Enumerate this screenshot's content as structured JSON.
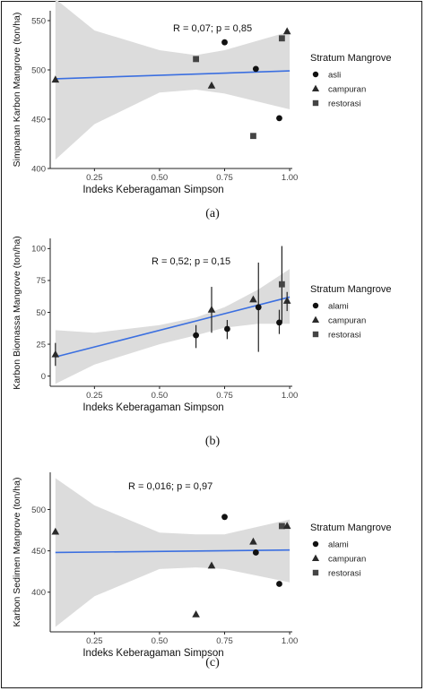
{
  "chart_data": [
    {
      "type": "scatter",
      "caption": "(a)",
      "annotation": "R = 0,07; p = 0,85",
      "xlabel": "Indeks Keberagaman Simpson",
      "ylabel": "Simpanan Karbon Mangrove (ton/ha)",
      "xlim": [
        0.08,
        1.01
      ],
      "ylim": [
        400,
        560
      ],
      "x_ticks": [
        0.25,
        0.5,
        0.75,
        1.0
      ],
      "x_tick_labels": [
        "0.25",
        "0.50",
        "0.75",
        "1.00"
      ],
      "y_ticks": [
        400,
        450,
        500,
        550
      ],
      "y_tick_labels": [
        "400",
        "450",
        "500",
        "550"
      ],
      "legend": {
        "title": "Stratum Mangrove",
        "position": "right",
        "entries": [
          {
            "label": "asli",
            "shape": "circle"
          },
          {
            "label": "campuran",
            "shape": "triangle"
          },
          {
            "label": "restorasi",
            "shape": "square"
          }
        ]
      },
      "points": [
        {
          "x": 0.75,
          "y": 528,
          "shape": "circle"
        },
        {
          "x": 0.87,
          "y": 501,
          "shape": "circle"
        },
        {
          "x": 0.96,
          "y": 451,
          "shape": "circle"
        },
        {
          "x": 0.1,
          "y": 490,
          "shape": "triangle"
        },
        {
          "x": 0.7,
          "y": 484,
          "shape": "triangle"
        },
        {
          "x": 0.99,
          "y": 539,
          "shape": "triangle"
        },
        {
          "x": 0.64,
          "y": 511,
          "shape": "square"
        },
        {
          "x": 0.86,
          "y": 433,
          "shape": "square"
        },
        {
          "x": 0.97,
          "y": 532,
          "shape": "square"
        }
      ],
      "trend": {
        "x": [
          0.1,
          1.0
        ],
        "y": [
          491,
          499
        ]
      },
      "band": {
        "x": [
          0.1,
          0.25,
          0.5,
          0.64,
          0.75,
          1.0
        ],
        "lower": [
          409,
          445,
          477,
          480,
          476,
          460
        ],
        "upper": [
          572,
          540,
          520,
          515,
          520,
          539
        ]
      }
    },
    {
      "type": "scatter",
      "caption": "(b)",
      "annotation": "R = 0,52; p = 0,15",
      "xlabel": "Indeks Keberagaman Simpson",
      "ylabel": "Karbon Biomassa Mangrove (ton/ha)",
      "xlim": [
        0.08,
        1.01
      ],
      "ylim": [
        -8,
        108
      ],
      "x_ticks": [
        0.25,
        0.5,
        0.75,
        1.0
      ],
      "x_tick_labels": [
        "0.25",
        "0.50",
        "0.75",
        "1.00"
      ],
      "y_ticks": [
        0,
        25,
        50,
        75,
        100
      ],
      "y_tick_labels": [
        "0",
        "25",
        "50",
        "75",
        "100"
      ],
      "legend": {
        "title": "Stratum Mangrove",
        "position": "right",
        "entries": [
          {
            "label": "alami",
            "shape": "circle"
          },
          {
            "label": "campuran",
            "shape": "triangle"
          },
          {
            "label": "restorasi",
            "shape": "square"
          }
        ]
      },
      "points": [
        {
          "x": 0.1,
          "y": 17,
          "shape": "triangle",
          "err": [
            8,
            26
          ]
        },
        {
          "x": 0.64,
          "y": 32,
          "shape": "circle",
          "err": [
            22,
            40
          ]
        },
        {
          "x": 0.7,
          "y": 52,
          "shape": "triangle",
          "err": [
            34,
            70
          ]
        },
        {
          "x": 0.76,
          "y": 37,
          "shape": "circle",
          "err": [
            29,
            44
          ]
        },
        {
          "x": 0.86,
          "y": 60,
          "shape": "triangle"
        },
        {
          "x": 0.88,
          "y": 54,
          "shape": "circle",
          "err": [
            19,
            89
          ]
        },
        {
          "x": 0.96,
          "y": 42,
          "shape": "circle",
          "err": [
            33,
            52
          ]
        },
        {
          "x": 0.97,
          "y": 72,
          "shape": "square",
          "err": [
            42,
            102
          ]
        },
        {
          "x": 0.99,
          "y": 59,
          "shape": "triangle",
          "err": [
            51,
            66
          ]
        }
      ],
      "trend": {
        "x": [
          0.1,
          1.0
        ],
        "y": [
          15,
          62
        ]
      },
      "band": {
        "x": [
          0.1,
          0.25,
          0.5,
          0.64,
          0.75,
          0.88,
          1.0
        ],
        "lower": [
          -6,
          9,
          25,
          32,
          38,
          41,
          41
        ],
        "upper": [
          36,
          34,
          40,
          46,
          54,
          68,
          84
        ]
      }
    },
    {
      "type": "scatter",
      "caption": "(c)",
      "annotation": "R = 0,016; p = 0,97",
      "xlabel": "Indeks Keberagaman Simpson",
      "ylabel": "Karbon Sedimen Mangrove (ton/ha)",
      "xlim": [
        0.08,
        1.01
      ],
      "ylim": [
        352,
        545
      ],
      "x_ticks": [
        0.25,
        0.5,
        0.75,
        1.0
      ],
      "x_tick_labels": [
        "0.25",
        "0.50",
        "0.75",
        "1.00"
      ],
      "y_ticks": [
        400,
        450,
        500
      ],
      "y_tick_labels": [
        "400",
        "450",
        "500"
      ],
      "legend": {
        "title": "Stratum Mangrove",
        "position": "right",
        "entries": [
          {
            "label": "alami",
            "shape": "circle"
          },
          {
            "label": "campuran",
            "shape": "triangle"
          },
          {
            "label": "restorasi",
            "shape": "square"
          }
        ]
      },
      "points": [
        {
          "x": 0.1,
          "y": 473,
          "shape": "triangle"
        },
        {
          "x": 0.64,
          "y": 373,
          "shape": "triangle"
        },
        {
          "x": 0.7,
          "y": 432,
          "shape": "triangle"
        },
        {
          "x": 0.75,
          "y": 491,
          "shape": "circle"
        },
        {
          "x": 0.86,
          "y": 461,
          "shape": "triangle"
        },
        {
          "x": 0.87,
          "y": 448,
          "shape": "circle"
        },
        {
          "x": 0.96,
          "y": 410,
          "shape": "circle"
        },
        {
          "x": 0.97,
          "y": 480,
          "shape": "square"
        },
        {
          "x": 0.99,
          "y": 480,
          "shape": "triangle"
        }
      ],
      "trend": {
        "x": [
          0.1,
          1.0
        ],
        "y": [
          448,
          451
        ]
      },
      "band": {
        "x": [
          0.1,
          0.25,
          0.5,
          0.64,
          0.75,
          1.0
        ],
        "lower": [
          358,
          395,
          428,
          430,
          428,
          412
        ],
        "upper": [
          538,
          505,
          472,
          470,
          470,
          488
        ]
      }
    }
  ]
}
